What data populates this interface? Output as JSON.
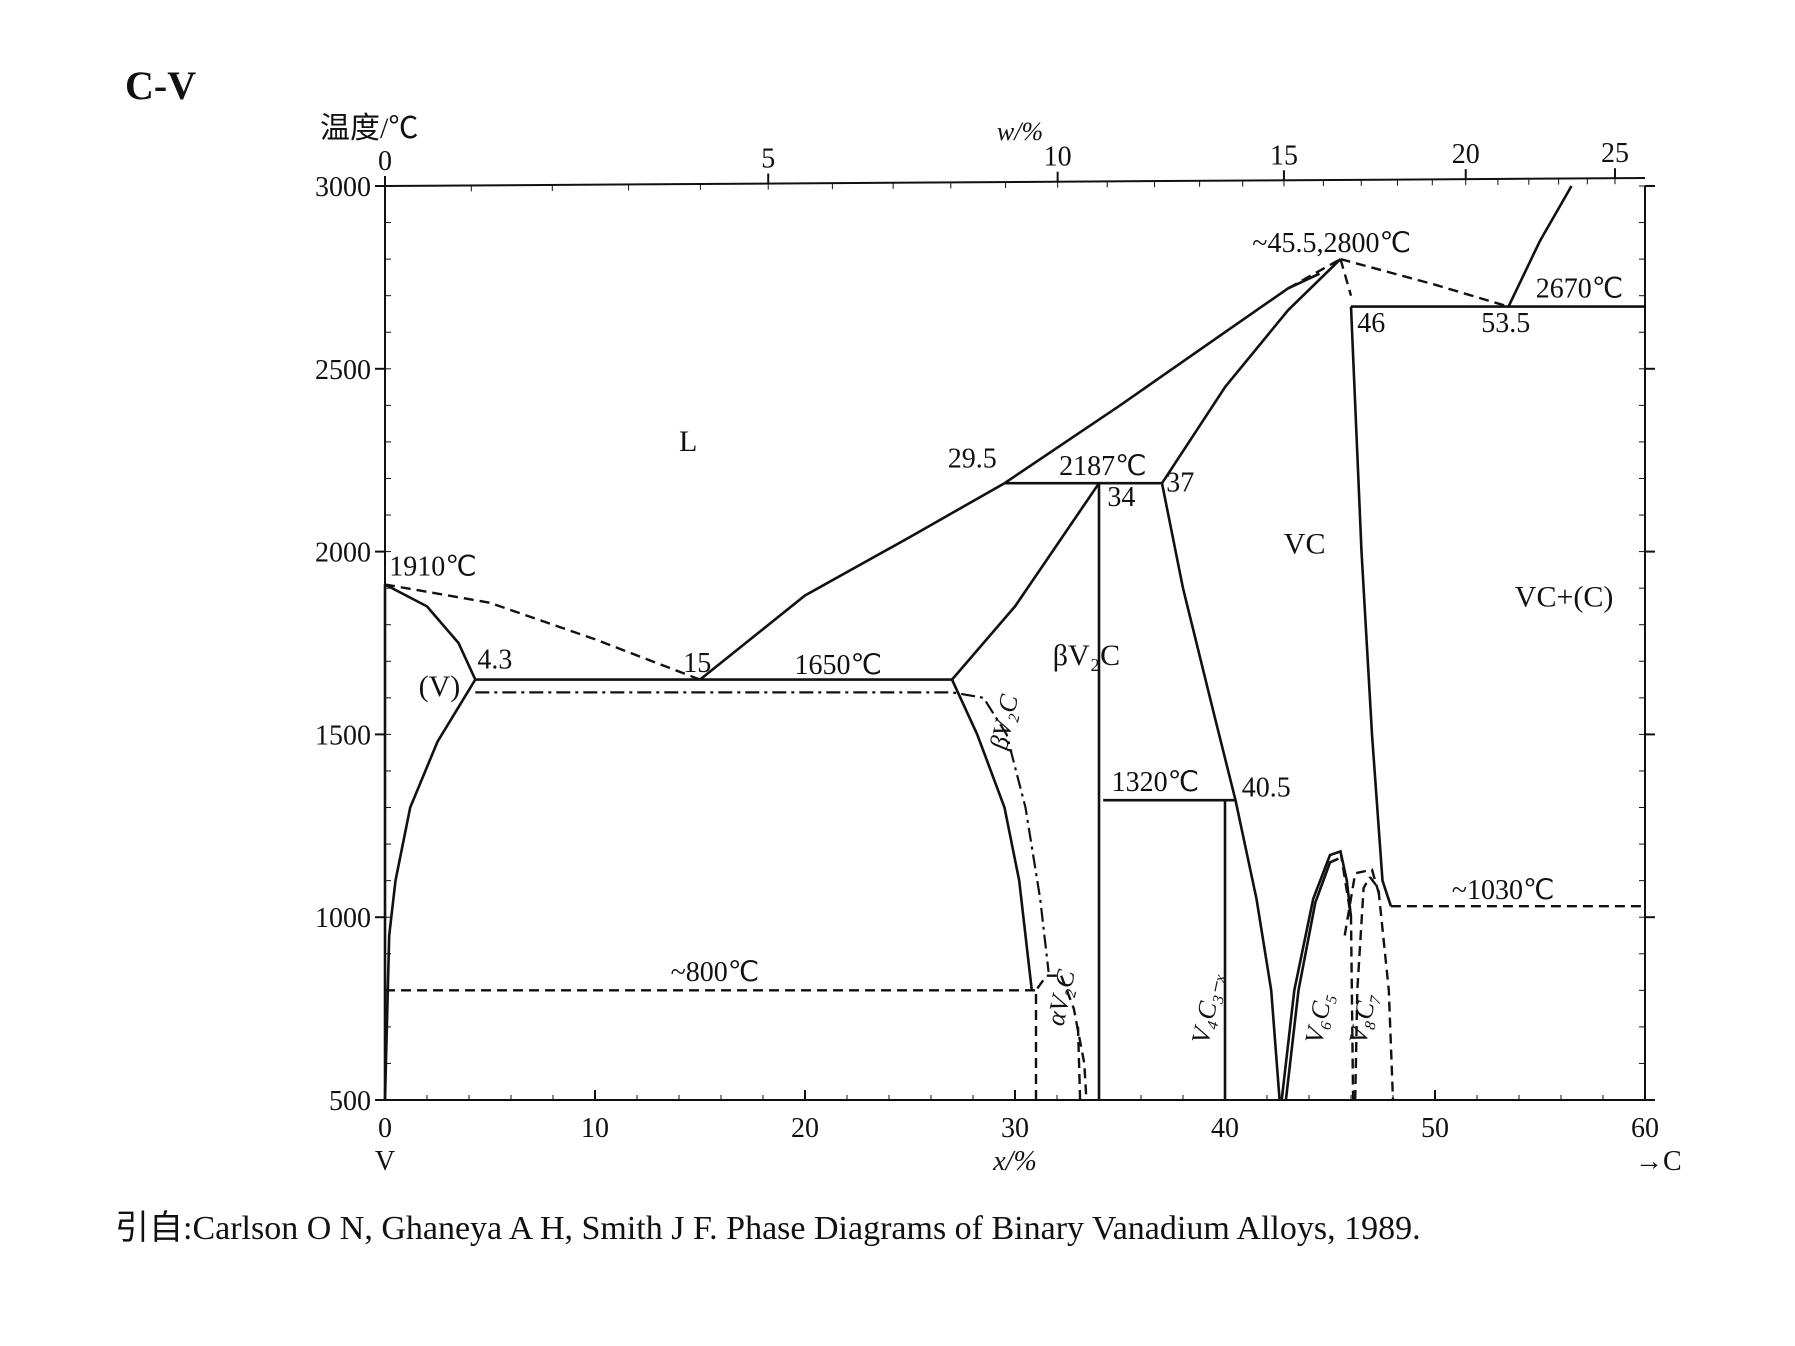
{
  "title": "C-V",
  "caption": "引自:Carlson O N, Ghaneya A H, Smith J F. Phase Diagrams of Binary Vanadium Alloys, 1989.",
  "chart_data": {
    "type": "phase-diagram",
    "y_axis": {
      "label": "温度/℃",
      "range": [
        500,
        3000
      ],
      "ticks": [
        500,
        1000,
        1500,
        2000,
        2500,
        3000
      ],
      "tick_labels": [
        "500",
        "1000",
        "1500",
        "2000",
        "2500",
        "3000"
      ]
    },
    "x_axis_bottom": {
      "label": "x/%",
      "range": [
        0,
        60
      ],
      "ticks": [
        0,
        10,
        20,
        30,
        40,
        50,
        60
      ],
      "tick_labels": [
        "0",
        "10",
        "20",
        "30",
        "40",
        "50",
        "60"
      ],
      "left_element": "V",
      "right_element": "→C"
    },
    "x_axis_top": {
      "label": "w/%",
      "ticks": [
        0,
        5,
        10,
        15,
        20,
        25
      ],
      "tick_labels": [
        "0",
        "5",
        "10",
        "15",
        "20",
        "25"
      ]
    },
    "phase_labels": [
      {
        "text": "L",
        "x": 14,
        "y": 2275
      },
      {
        "text": "(V)",
        "x": 1.6,
        "y": 1605
      },
      {
        "text": "βV₂C",
        "x": 31.8,
        "y": 1690
      },
      {
        "text": "VC",
        "x": 42.8,
        "y": 1995
      },
      {
        "text": "VC+(C)",
        "x": 53.8,
        "y": 1850
      }
    ],
    "rotated_labels": [
      {
        "text": "βV₂C",
        "x": 29.6,
        "y": 1455
      },
      {
        "text": "αV₂C",
        "x": 32.3,
        "y": 700
      },
      {
        "text": "V₄C₃₋ₓ",
        "x": 39.2,
        "y": 650
      },
      {
        "text": "V₆C₅",
        "x": 44.6,
        "y": 650
      },
      {
        "text": "V₈C₇",
        "x": 46.7,
        "y": 650
      }
    ],
    "annotations": [
      {
        "text": "1910℃",
        "x": 0.2,
        "y": 1935
      },
      {
        "text": "4.3",
        "x": 4.4,
        "y": 1680
      },
      {
        "text": "15",
        "x": 14.2,
        "y": 1670
      },
      {
        "text": "1650℃",
        "x": 19.5,
        "y": 1665
      },
      {
        "text": "29.5",
        "x": 26.8,
        "y": 2230
      },
      {
        "text": "2187℃",
        "x": 32.1,
        "y": 2210
      },
      {
        "text": "34",
        "x": 34.4,
        "y": 2125
      },
      {
        "text": "37",
        "x": 37.2,
        "y": 2165
      },
      {
        "text": "1320℃",
        "x": 34.6,
        "y": 1345
      },
      {
        "text": "40.5",
        "x": 40.8,
        "y": 1330
      },
      {
        "text": "~45.5,2800℃",
        "x": 41.3,
        "y": 2820
      },
      {
        "text": "2670℃",
        "x": 54.8,
        "y": 2695
      },
      {
        "text": "46",
        "x": 46.3,
        "y": 2600
      },
      {
        "text": "53.5",
        "x": 52.2,
        "y": 2600
      },
      {
        "text": "~800℃",
        "x": 13.6,
        "y": 825
      },
      {
        "text": "~1030℃",
        "x": 50.8,
        "y": 1050
      }
    ],
    "solid_lines": [
      {
        "name": "liquidus-left",
        "points": [
          [
            15,
            1650
          ],
          [
            20,
            1880
          ],
          [
            25,
            2040
          ],
          [
            29.5,
            2187
          ]
        ]
      },
      {
        "name": "liquidus-to-max",
        "points": [
          [
            29.5,
            2187
          ],
          [
            35,
            2400
          ],
          [
            40,
            2600
          ],
          [
            43,
            2720
          ],
          [
            44.5,
            2760
          ]
        ]
      },
      {
        "name": "solidus-v2c-top",
        "points": [
          [
            27,
            1650
          ],
          [
            30,
            1850
          ],
          [
            34,
            2187
          ]
        ]
      },
      {
        "name": "eutectic-1650",
        "points": [
          [
            4.3,
            1650
          ],
          [
            27,
            1650
          ]
        ]
      },
      {
        "name": "peritectic-2187",
        "points": [
          [
            29.5,
            2187
          ],
          [
            37,
            2187
          ]
        ]
      },
      {
        "name": "v-solvus-upper",
        "points": [
          [
            0,
            1910
          ],
          [
            2,
            1850
          ],
          [
            3.5,
            1750
          ],
          [
            4.3,
            1650
          ]
        ]
      },
      {
        "name": "v-solvus-lower",
        "points": [
          [
            4.3,
            1650
          ],
          [
            2.5,
            1480
          ],
          [
            1.2,
            1300
          ],
          [
            0.5,
            1100
          ],
          [
            0.2,
            950
          ],
          [
            0,
            500
          ]
        ]
      },
      {
        "name": "v-axis-line",
        "points": [
          [
            0,
            1910
          ],
          [
            0,
            500
          ]
        ]
      },
      {
        "name": "v2c-right-boundary",
        "points": [
          [
            27,
            1650
          ],
          [
            28.2,
            1500
          ],
          [
            29.5,
            1300
          ],
          [
            30.2,
            1100
          ],
          [
            30.6,
            900
          ],
          [
            30.8,
            800
          ]
        ]
      },
      {
        "name": "x34-vertical",
        "points": [
          [
            34,
            2187
          ],
          [
            34,
            500
          ]
        ]
      },
      {
        "name": "vc-left-boundary",
        "points": [
          [
            37,
            2187
          ],
          [
            38,
            1900
          ],
          [
            39.5,
            1550
          ],
          [
            40.5,
            1320
          ],
          [
            41.5,
            1050
          ],
          [
            42.2,
            800
          ],
          [
            42.6,
            500
          ]
        ]
      },
      {
        "name": "vc-liquidus-right",
        "points": [
          [
            37,
            2187
          ],
          [
            40,
            2450
          ],
          [
            43,
            2660
          ],
          [
            45.5,
            2800
          ]
        ]
      },
      {
        "name": "line-1320",
        "points": [
          [
            34.2,
            1320
          ],
          [
            40.5,
            1320
          ]
        ]
      },
      {
        "name": "x40-vertical",
        "points": [
          [
            40,
            1320
          ],
          [
            40,
            500
          ]
        ]
      },
      {
        "name": "eutectic-2670",
        "points": [
          [
            46,
            2670
          ],
          [
            60,
            2670
          ]
        ]
      },
      {
        "name": "vc-right-boundary",
        "points": [
          [
            46,
            2670
          ],
          [
            46.5,
            2000
          ],
          [
            47,
            1500
          ],
          [
            47.5,
            1100
          ],
          [
            47.9,
            1030
          ]
        ]
      },
      {
        "name": "graphite-liquidus",
        "points": [
          [
            53.5,
            2670
          ],
          [
            55,
            2850
          ],
          [
            56.5,
            3000
          ]
        ]
      },
      {
        "name": "v6c5-dome-outer",
        "points": [
          [
            42.7,
            500
          ],
          [
            43.3,
            800
          ],
          [
            44.2,
            1050
          ],
          [
            45,
            1170
          ],
          [
            45.5,
            1180
          ],
          [
            45.8,
            1100
          ],
          [
            46,
            1000
          ]
        ]
      },
      {
        "name": "v6c5-dome-inner",
        "points": [
          [
            42.9,
            500
          ],
          [
            43.5,
            800
          ],
          [
            44.3,
            1040
          ],
          [
            45,
            1150
          ],
          [
            45.4,
            1160
          ]
        ]
      }
    ],
    "dashed_lines": [
      {
        "name": "v-liquidus-dashed",
        "points": [
          [
            0,
            1910
          ],
          [
            5,
            1860
          ],
          [
            10,
            1760
          ],
          [
            15,
            1650
          ]
        ]
      },
      {
        "name": "line-800",
        "points": [
          [
            0,
            800
          ],
          [
            31,
            800
          ]
        ]
      },
      {
        "name": "vc-max-right",
        "points": [
          [
            45.5,
            2800
          ],
          [
            50,
            2730
          ],
          [
            53.5,
            2670
          ]
        ]
      },
      {
        "name": "vc-max-left",
        "points": [
          [
            43,
            2720
          ],
          [
            45.5,
            2800
          ]
        ]
      },
      {
        "name": "vc-max-down",
        "points": [
          [
            45.5,
            2800
          ],
          [
            46,
            2700
          ]
        ]
      },
      {
        "name": "line-1030",
        "points": [
          [
            47.9,
            1030
          ],
          [
            60,
            1030
          ]
        ]
      },
      {
        "name": "av2c-left",
        "points": [
          [
            31,
            500
          ],
          [
            31,
            800
          ],
          [
            31.5,
            840
          ],
          [
            32.2,
            840
          ]
        ]
      },
      {
        "name": "av2c-right",
        "points": [
          [
            32.2,
            840
          ],
          [
            32.8,
            750
          ],
          [
            33.3,
            600
          ],
          [
            33.4,
            500
          ]
        ]
      },
      {
        "name": "av2c-right-inner",
        "points": [
          [
            33.1,
            500
          ],
          [
            33.0,
            700
          ]
        ]
      },
      {
        "name": "v8c7-dome-left",
        "points": [
          [
            46.2,
            500
          ],
          [
            46.3,
            800
          ],
          [
            46.6,
            1080
          ],
          [
            46.9,
            1110
          ]
        ]
      },
      {
        "name": "v8c7-dome-right",
        "points": [
          [
            46.9,
            1110
          ],
          [
            47.3,
            1080
          ],
          [
            47.8,
            800
          ],
          [
            48,
            500
          ]
        ]
      },
      {
        "name": "v8c7-dome-2",
        "points": [
          [
            45.7,
            950
          ],
          [
            46.2,
            1120
          ],
          [
            47,
            1130
          ],
          [
            47.4,
            1050
          ]
        ]
      },
      {
        "name": "v6c5-dashed-right",
        "points": [
          [
            45.5,
            1180
          ],
          [
            46,
            1000
          ],
          [
            46.1,
            500
          ]
        ]
      }
    ],
    "dashdot_lines": [
      {
        "name": "betav2c-solvus",
        "points": [
          [
            4.3,
            1615
          ],
          [
            27,
            1615
          ],
          [
            28.5,
            1600
          ],
          [
            29.6,
            1500
          ],
          [
            30.5,
            1300
          ],
          [
            31.2,
            1050
          ],
          [
            31.6,
            850
          ]
        ]
      }
    ]
  }
}
